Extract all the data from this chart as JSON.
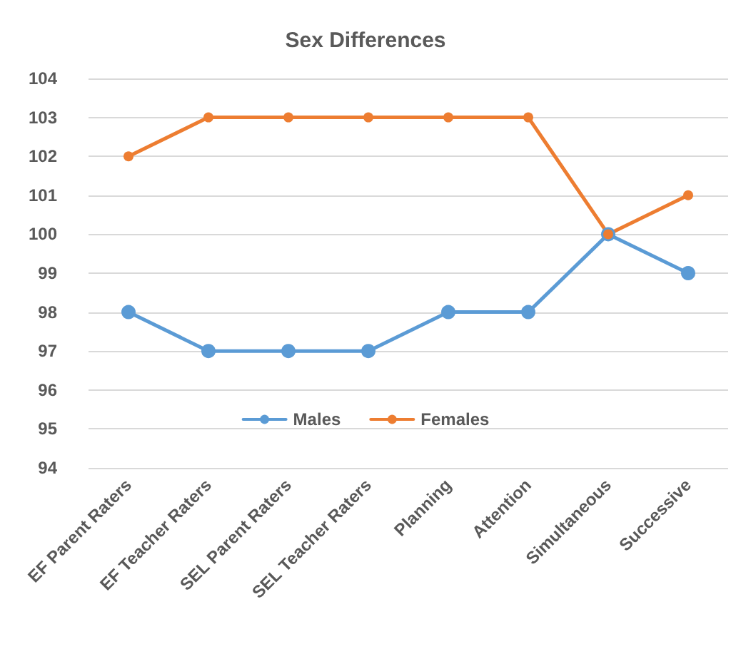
{
  "chart_data": {
    "type": "line",
    "title": "Sex Differences",
    "categories": [
      "EF Parent Raters",
      "EF Teacher Raters",
      "SEL Parent Raters",
      "SEL Teacher Raters",
      "Planning",
      "Attention",
      "Simultaneous",
      "Successive"
    ],
    "series": [
      {
        "name": "Males",
        "color": "#5b9bd5",
        "values": [
          98,
          97,
          97,
          97,
          98,
          98,
          100,
          99
        ]
      },
      {
        "name": "Females",
        "color": "#ed7d31",
        "values": [
          102,
          103,
          103,
          103,
          103,
          103,
          100,
          101
        ]
      }
    ],
    "ylim": [
      94,
      104
    ],
    "yticks": [
      94,
      95,
      96,
      97,
      98,
      99,
      100,
      101,
      102,
      103,
      104
    ],
    "grid": "y",
    "legend": "bottom",
    "marker": "circle",
    "line_style": "solid"
  }
}
